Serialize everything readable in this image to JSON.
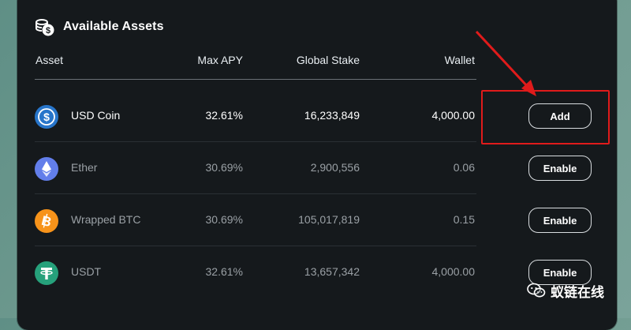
{
  "panel": {
    "title": "Available Assets",
    "columns": {
      "asset": "Asset",
      "max_apy": "Max APY",
      "global_stake": "Global Stake",
      "wallet": "Wallet"
    },
    "rows": [
      {
        "name": "USD Coin",
        "icon": "usd-coin-icon",
        "max_apy": "32.61%",
        "global_stake": "16,233,849",
        "wallet": "4,000.00",
        "action": "Add",
        "active": true
      },
      {
        "name": "Ether",
        "icon": "ether-icon",
        "max_apy": "30.69%",
        "global_stake": "2,900,556",
        "wallet": "0.06",
        "action": "Enable",
        "active": false
      },
      {
        "name": "Wrapped BTC",
        "icon": "bitcoin-icon",
        "max_apy": "30.69%",
        "global_stake": "105,017,819",
        "wallet": "0.15",
        "action": "Enable",
        "active": false
      },
      {
        "name": "USDT",
        "icon": "tether-icon",
        "max_apy": "32.61%",
        "global_stake": "13,657,342",
        "wallet": "4,000.00",
        "action": "Enable",
        "active": false
      }
    ]
  },
  "watermark": {
    "text": "蚁链在线",
    "icon": "wechat-icon"
  },
  "colors": {
    "panel_bg": "#15191c",
    "usdc": "#2775ca",
    "ether": "#627eea",
    "btc": "#f7931a",
    "usdt": "#26a17b",
    "annotation_red": "#e01b1b"
  }
}
